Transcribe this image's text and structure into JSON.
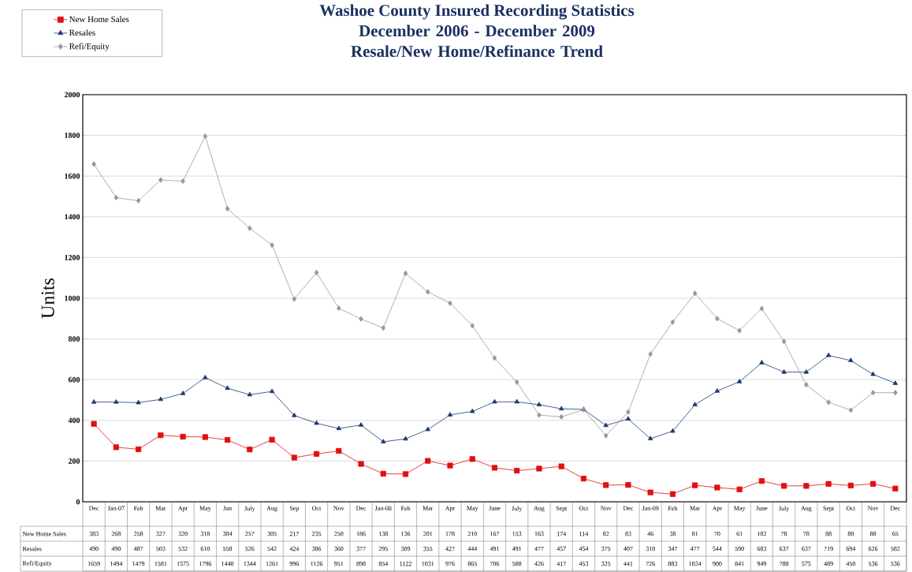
{
  "chart_data": {
    "type": "line",
    "title": "Washoe County Insured Recording Statistics",
    "subtitle": "December 2006 - December 2009\nResale/New Home/Refinance Trend",
    "ylabel": "Units",
    "categories": [
      "Dec",
      "Jan-07",
      "Feb",
      "Mar",
      "Apr",
      "May",
      "Jun",
      "July",
      "Aug",
      "Sep",
      "Oct",
      "Nov",
      "Dec",
      "Jan-08",
      "Feb",
      "Mar",
      "Apr",
      "May",
      "June",
      "July",
      "Aug",
      "Sept",
      "Oct",
      "Nov",
      "Dec",
      "Jan-09",
      "Feb",
      "Mar",
      "Apr",
      "May",
      "June",
      "July",
      "Aug",
      "Sept",
      "Oct",
      "Nov",
      "Dec"
    ],
    "series": [
      {
        "name": "New Home Sales",
        "color": "#e01010",
        "marker": "square",
        "values": [
          383,
          268,
          258,
          327,
          320,
          318,
          304,
          257,
          305,
          217,
          235,
          250,
          186,
          138,
          136,
          201,
          178,
          210,
          167,
          153,
          163,
          174,
          114,
          82,
          83,
          46,
          38,
          81,
          70,
          61,
          102,
          78,
          78,
          88,
          80,
          88,
          65
        ]
      },
      {
        "name": "Resales",
        "color": "#1a3a6e",
        "marker": "triangle",
        "values": [
          490,
          490,
          487,
          503,
          532,
          610,
          558,
          526,
          542,
          424,
          386,
          360,
          377,
          295,
          309,
          355,
          427,
          444,
          491,
          491,
          477,
          457,
          454,
          375,
          407,
          310,
          347,
          477,
          544,
          590,
          683,
          637,
          637,
          719,
          694,
          626,
          582
        ]
      },
      {
        "name": "Refi/Equity",
        "color": "#999999",
        "marker": "diamond",
        "values": [
          1659,
          1494,
          1479,
          1581,
          1575,
          1796,
          1440,
          1344,
          1261,
          996,
          1126,
          951,
          898,
          854,
          1122,
          1031,
          976,
          865,
          706,
          588,
          426,
          417,
          453,
          325,
          441,
          726,
          883,
          1024,
          900,
          841,
          949,
          788,
          575,
          489,
          450,
          536,
          536
        ]
      }
    ],
    "ylim": [
      0,
      2000
    ],
    "yticks": [
      0,
      200,
      400,
      600,
      800,
      1000,
      1200,
      1400,
      1600,
      1800,
      2000
    ],
    "grid": "y",
    "legend": "top left",
    "data_labels": true
  }
}
